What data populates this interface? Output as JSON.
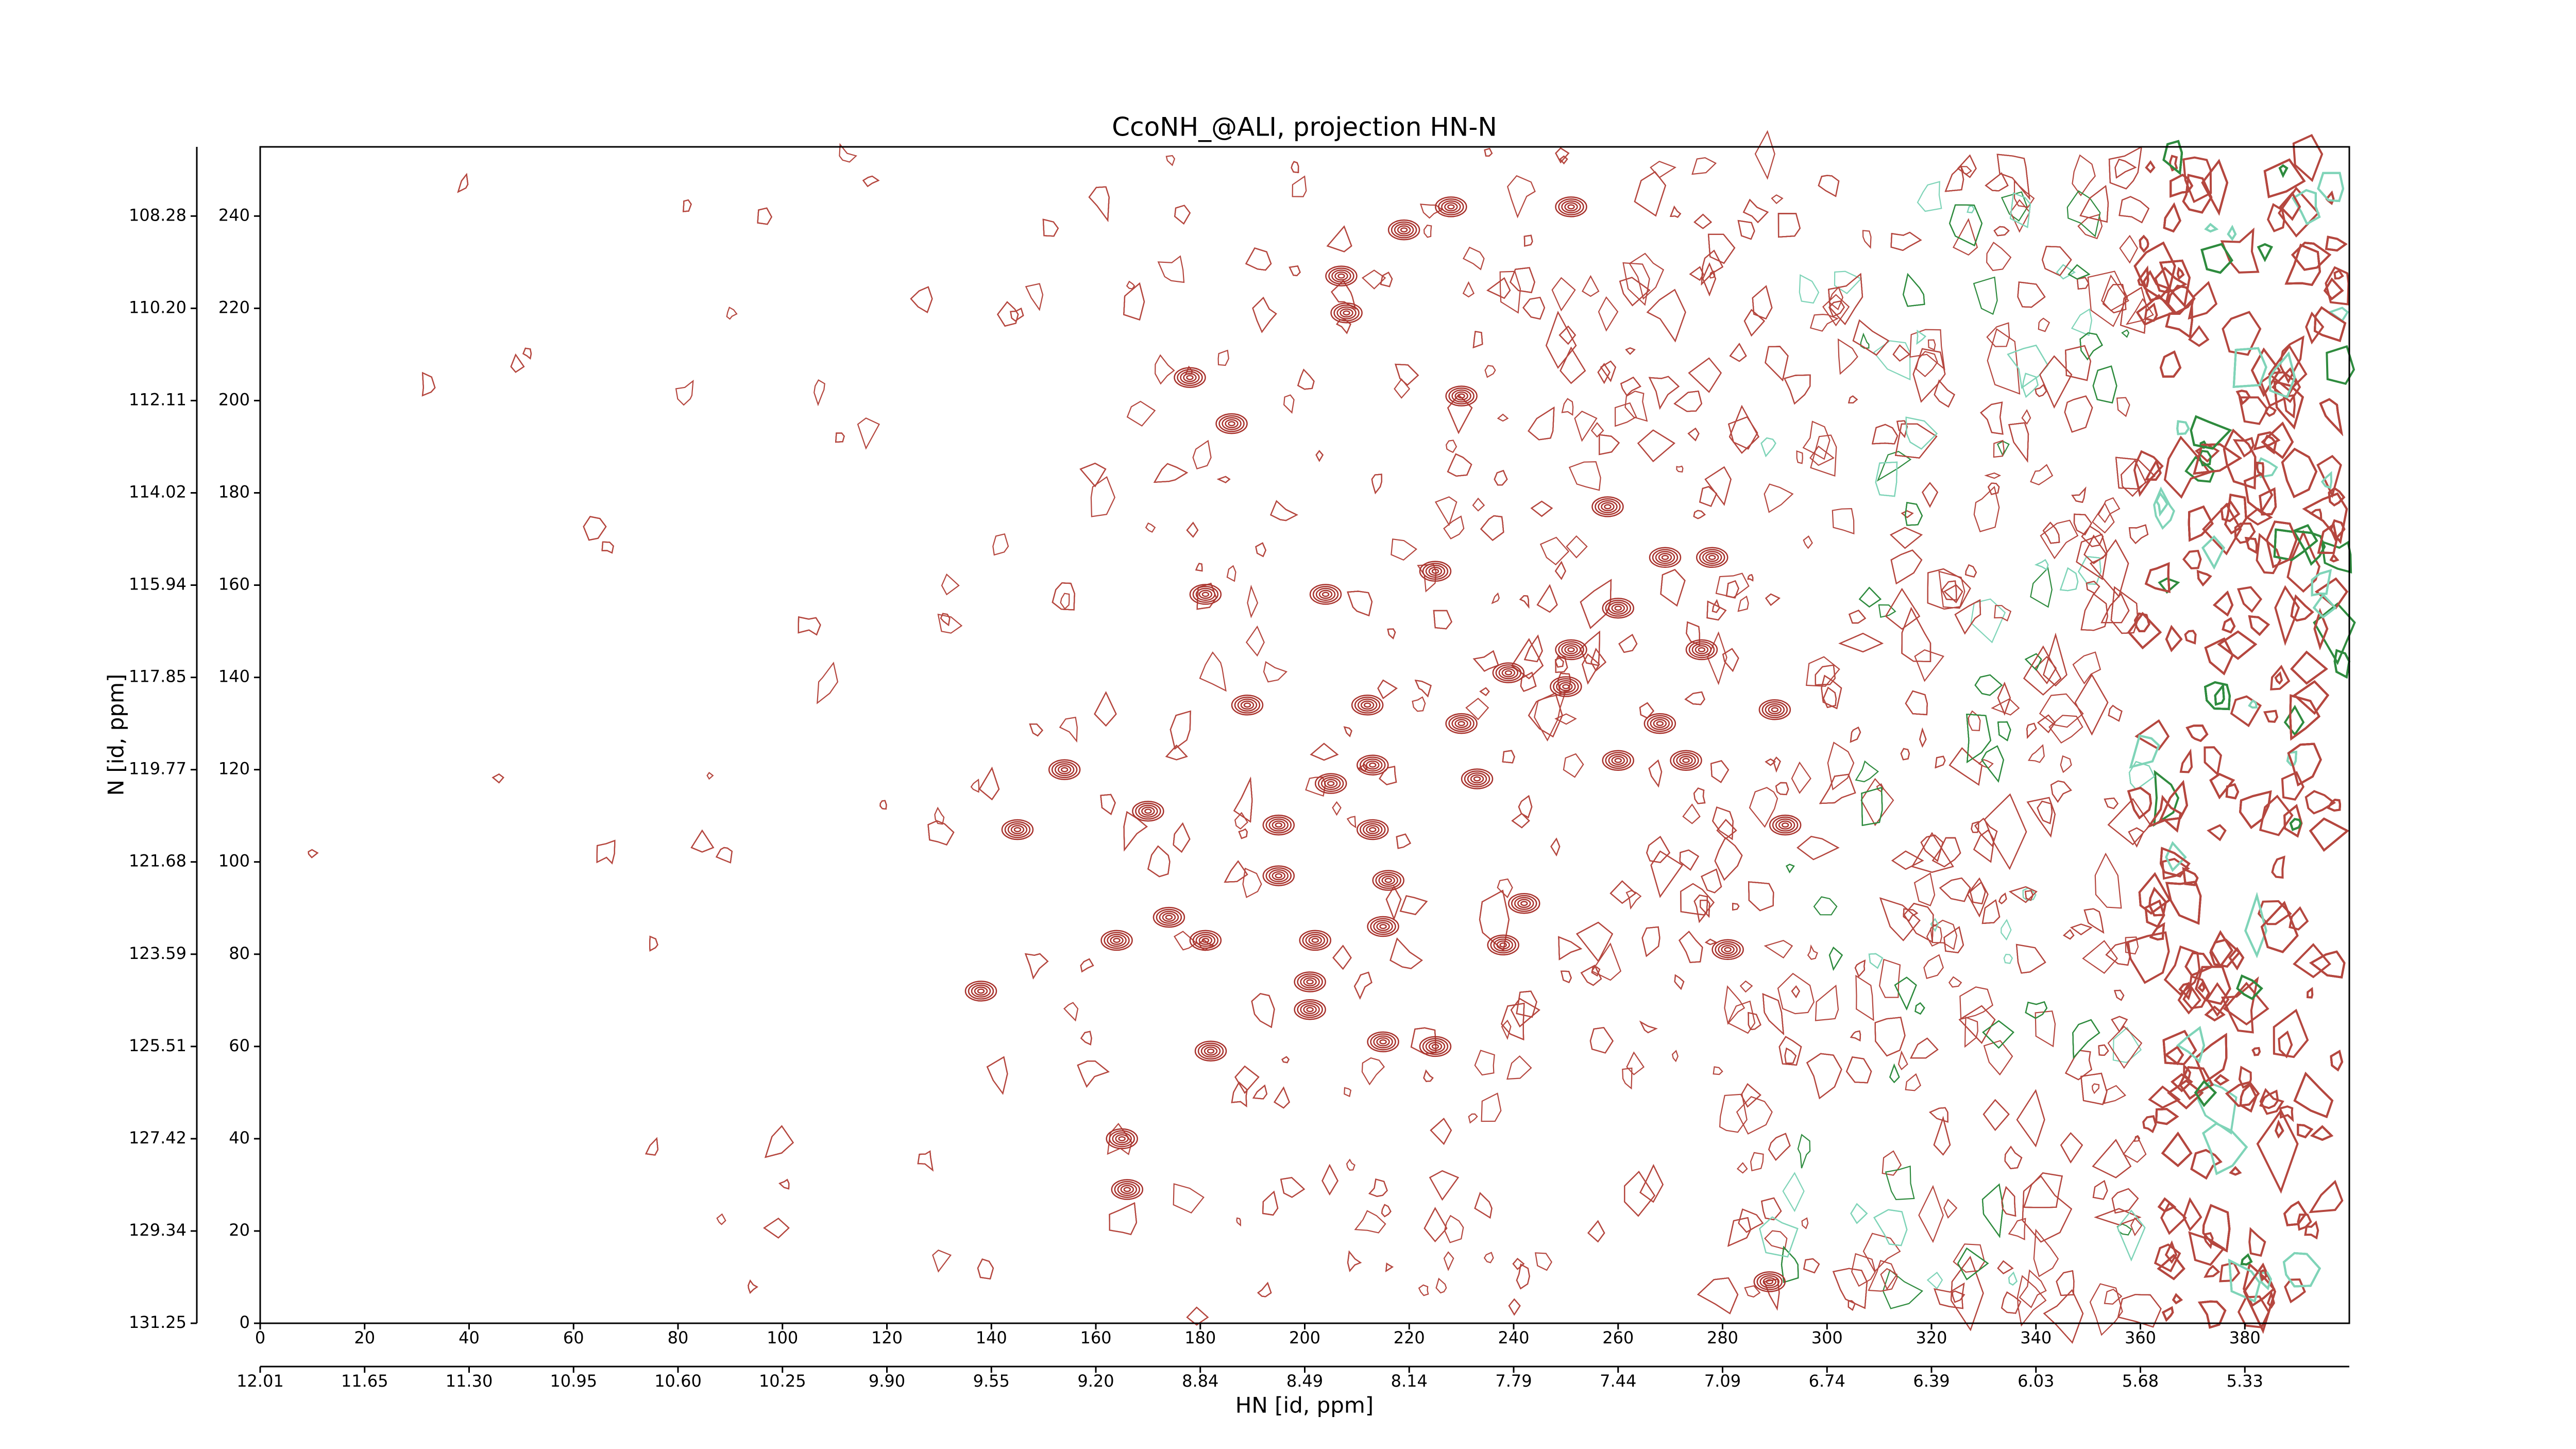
{
  "chart_data": {
    "type": "contour",
    "title": "CcoNH_@ALI, projection HN-N",
    "xlabel": "HN [id, ppm]",
    "ylabel": "N [id, ppm]",
    "xlim": [
      0,
      400
    ],
    "ylim": [
      0,
      255
    ],
    "xticks": [
      0,
      20,
      40,
      60,
      80,
      100,
      120,
      140,
      160,
      180,
      200,
      220,
      240,
      260,
      280,
      300,
      320,
      340,
      360,
      380
    ],
    "yticks": [
      0,
      20,
      40,
      60,
      80,
      100,
      120,
      140,
      160,
      180,
      200,
      220,
      240
    ],
    "x_ppm_ticks": [
      {
        "value": 0,
        "label": "12.01"
      },
      {
        "value": 20,
        "label": "11.65"
      },
      {
        "value": 40,
        "label": "11.30"
      },
      {
        "value": 60,
        "label": "10.95"
      },
      {
        "value": 80,
        "label": "10.60"
      },
      {
        "value": 100,
        "label": "10.25"
      },
      {
        "value": 120,
        "label": "9.90"
      },
      {
        "value": 140,
        "label": "9.55"
      },
      {
        "value": 160,
        "label": "9.20"
      },
      {
        "value": 180,
        "label": "8.84"
      },
      {
        "value": 200,
        "label": "8.49"
      },
      {
        "value": 220,
        "label": "8.14"
      },
      {
        "value": 240,
        "label": "7.79"
      },
      {
        "value": 260,
        "label": "7.44"
      },
      {
        "value": 280,
        "label": "7.09"
      },
      {
        "value": 300,
        "label": "6.74"
      },
      {
        "value": 320,
        "label": "6.39"
      },
      {
        "value": 340,
        "label": "6.03"
      },
      {
        "value": 360,
        "label": "5.68"
      },
      {
        "value": 380,
        "label": "5.33"
      }
    ],
    "y_ppm_ticks": [
      {
        "value": 0,
        "label": "131.25"
      },
      {
        "value": 20,
        "label": "129.34"
      },
      {
        "value": 40,
        "label": "127.42"
      },
      {
        "value": 60,
        "label": "125.51"
      },
      {
        "value": 80,
        "label": "123.59"
      },
      {
        "value": 100,
        "label": "121.68"
      },
      {
        "value": 120,
        "label": "119.77"
      },
      {
        "value": 140,
        "label": "117.85"
      },
      {
        "value": 160,
        "label": "115.94"
      },
      {
        "value": 180,
        "label": "114.02"
      },
      {
        "value": 200,
        "label": "112.11"
      },
      {
        "value": 220,
        "label": "110.20"
      },
      {
        "value": 240,
        "label": "108.28"
      }
    ],
    "color": "#a8322c",
    "peaks": {
      "x": [
        178,
        186,
        219,
        207,
        228,
        251,
        230,
        258,
        181,
        204,
        225,
        260,
        269,
        278,
        276,
        251,
        239,
        250,
        189,
        212,
        230,
        268,
        290,
        260,
        273,
        154,
        205,
        213,
        233,
        170,
        145,
        195,
        213,
        292,
        195,
        216,
        242,
        174,
        215,
        164,
        181,
        202,
        238,
        281,
        138,
        201,
        201,
        225,
        182,
        165,
        166,
        289,
        208,
        215
      ],
      "y": [
        205,
        195,
        237,
        227,
        242,
        242,
        201,
        177,
        158,
        158,
        163,
        155,
        166,
        166,
        146,
        146,
        141,
        138,
        134,
        134,
        130,
        130,
        133,
        122,
        122,
        120,
        117,
        121,
        118,
        111,
        107,
        108,
        107,
        108,
        97,
        96,
        91,
        88,
        86,
        83,
        83,
        83,
        82,
        81,
        72,
        74,
        68,
        60,
        59,
        40,
        29,
        9,
        219,
        61
      ]
    }
  }
}
